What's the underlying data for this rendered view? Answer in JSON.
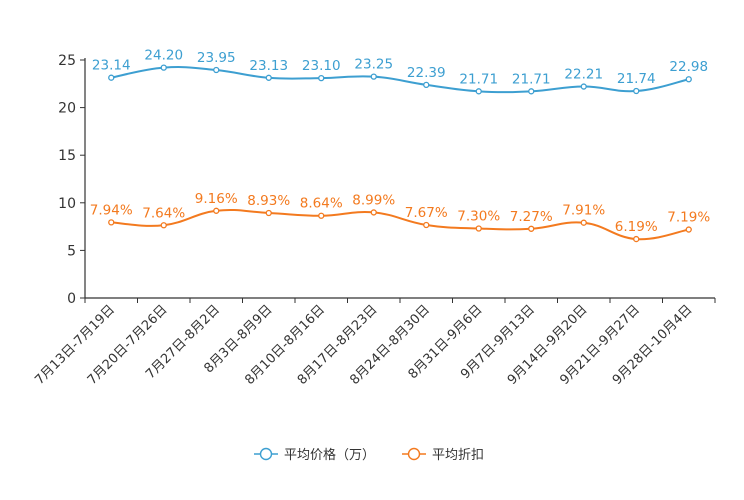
{
  "chart_data": {
    "type": "line",
    "categories": [
      "7月13日-7月19日",
      "7月20日-7月26日",
      "7月27日-8月2日",
      "8月3日-8月9日",
      "8月10日-8月16日",
      "8月17日-8月23日",
      "8月24日-8月30日",
      "8月31日-9月6日",
      "9月7日-9月13日",
      "9月14日-9月20日",
      "9月21日-9月27日",
      "9月28日-10月4日"
    ],
    "ylim": [
      0,
      25
    ],
    "yticks": [
      0,
      5,
      10,
      15,
      20,
      25
    ],
    "grid": false,
    "legend_position": "bottom",
    "series": [
      {
        "name": "平均价格（万）",
        "color": "#3d9fd1",
        "values": [
          23.14,
          24.2,
          23.95,
          23.13,
          23.1,
          23.25,
          22.39,
          21.71,
          21.71,
          22.21,
          21.74,
          22.98
        ],
        "labels": [
          "23.14",
          "24.20",
          "23.95",
          "23.13",
          "23.10",
          "23.25",
          "22.39",
          "21.71",
          "21.71",
          "22.21",
          "21.74",
          "22.98"
        ]
      },
      {
        "name": "平均折扣",
        "color": "#f37a1f",
        "values": [
          7.94,
          7.64,
          9.16,
          8.93,
          8.64,
          8.99,
          7.67,
          7.3,
          7.27,
          7.91,
          6.19,
          7.19
        ],
        "labels": [
          "7.94%",
          "7.64%",
          "9.16%",
          "8.93%",
          "8.64%",
          "8.99%",
          "7.67%",
          "7.30%",
          "7.27%",
          "7.91%",
          "6.19%",
          "7.19%"
        ]
      }
    ]
  }
}
